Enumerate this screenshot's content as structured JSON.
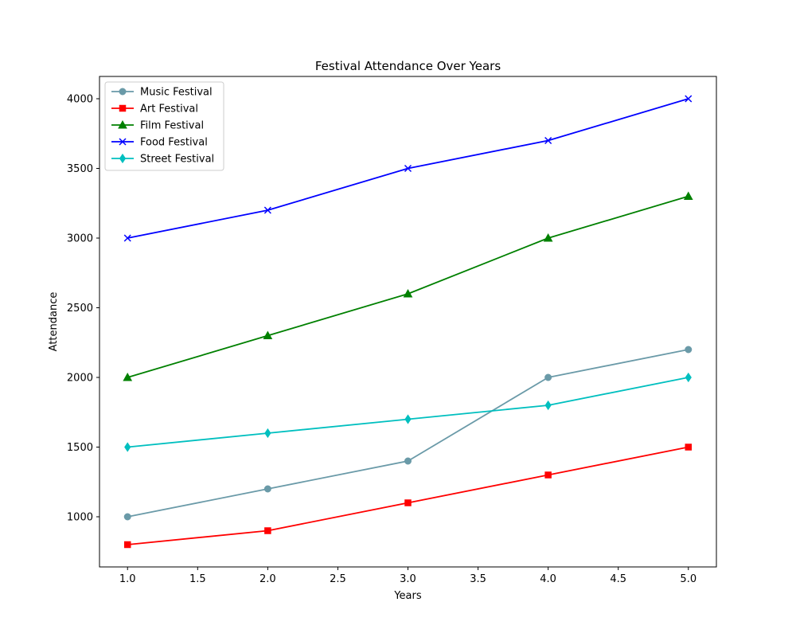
{
  "chart_data": {
    "type": "line",
    "title": "Festival Attendance Over Years",
    "xlabel": "Years",
    "ylabel": "Attendance",
    "x": [
      1,
      2,
      3,
      4,
      5
    ],
    "xlim": [
      0.8,
      5.2
    ],
    "ylim": [
      640,
      4160
    ],
    "x_ticks": [
      1.0,
      1.5,
      2.0,
      2.5,
      3.0,
      3.5,
      4.0,
      4.5,
      5.0
    ],
    "x_tick_labels": [
      "1.0",
      "1.5",
      "2.0",
      "2.5",
      "3.0",
      "3.5",
      "4.0",
      "4.5",
      "5.0"
    ],
    "y_ticks": [
      1000,
      1500,
      2000,
      2500,
      3000,
      3500,
      4000
    ],
    "y_tick_labels": [
      "1000",
      "1500",
      "2000",
      "2500",
      "3000",
      "3500",
      "4000"
    ],
    "grid": false,
    "legend_position": "top-left",
    "series": [
      {
        "name": "Music Festival",
        "values": [
          1000,
          1200,
          1400,
          2000,
          2200
        ],
        "color": "#6a9aa8",
        "marker": "circle"
      },
      {
        "name": "Art Festival",
        "values": [
          800,
          900,
          1100,
          1300,
          1500
        ],
        "color": "#ff0000",
        "marker": "square"
      },
      {
        "name": "Film Festival",
        "values": [
          2000,
          2300,
          2600,
          3000,
          3300
        ],
        "color": "#008000",
        "marker": "triangle"
      },
      {
        "name": "Food Festival",
        "values": [
          3000,
          3200,
          3500,
          3700,
          4000
        ],
        "color": "#0000ff",
        "marker": "x"
      },
      {
        "name": "Street Festival",
        "values": [
          1500,
          1600,
          1700,
          1800,
          2000
        ],
        "color": "#00bfbf",
        "marker": "diamond"
      }
    ]
  }
}
